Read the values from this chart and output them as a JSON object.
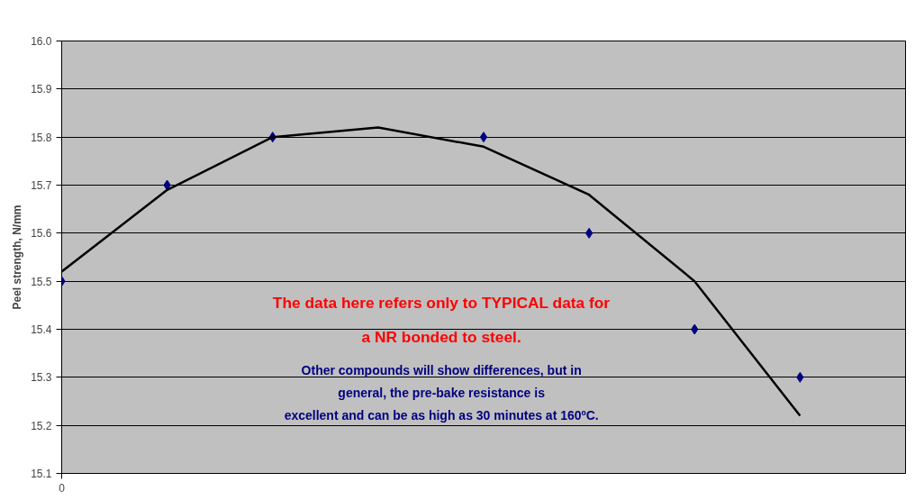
{
  "chart_data": {
    "type": "scatter",
    "ylabel": "Peel strength, N/mm",
    "categories": [
      "0",
      null,
      null,
      null,
      null,
      null,
      null,
      null,
      null
    ],
    "series": [
      {
        "color": "#000080",
        "marker": "diamond",
        "values": [
          15.5,
          15.7,
          15.8,
          null,
          15.8,
          15.6,
          15.4,
          15.3,
          null
        ]
      },
      {
        "type": "line",
        "color": "#000000",
        "line_style": "solid",
        "values": [
          15.52,
          15.69,
          15.8,
          15.82,
          15.78,
          15.68,
          15.5,
          15.22,
          null
        ]
      }
    ],
    "ylim": [
      15.1,
      16.0
    ],
    "yticks": [
      15.1,
      15.2,
      15.3,
      15.4,
      15.5,
      15.6,
      15.7,
      15.8,
      15.9,
      {
        "value": 16.0,
        "label": "16.0"
      }
    ],
    "grid": "y",
    "annotations": [
      "The data here refers only to TYPICAL data for\na NR bonded to steel.",
      "Other compounds will show differences, but in\ngeneral, the pre-bake resistance is\nexcellent and can be as high as 30 minutes at 160ºC."
    ]
  }
}
